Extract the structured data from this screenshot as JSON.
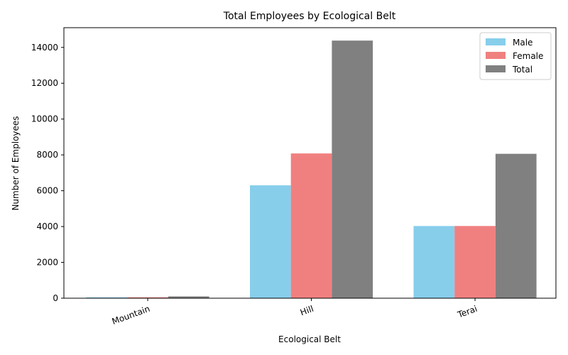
{
  "chart_data": {
    "type": "bar",
    "title": "Total Employees by Ecological Belt",
    "xlabel": "Ecological Belt",
    "ylabel": "Number of Employees",
    "categories": [
      "Mountain",
      "Hill",
      "Terai"
    ],
    "series": [
      {
        "name": "Male",
        "color": "#87ceeb",
        "values": [
          50,
          6300,
          4030
        ]
      },
      {
        "name": "Female",
        "color": "#f08080",
        "values": [
          50,
          8080,
          4030
        ]
      },
      {
        "name": "Total",
        "color": "#808080",
        "values": [
          100,
          14380,
          8060
        ]
      }
    ],
    "yticks": [
      0,
      2000,
      4000,
      6000,
      8000,
      10000,
      12000,
      14000
    ],
    "ylim": [
      0,
      15100
    ],
    "legend_position": "top-right",
    "grid": false
  }
}
